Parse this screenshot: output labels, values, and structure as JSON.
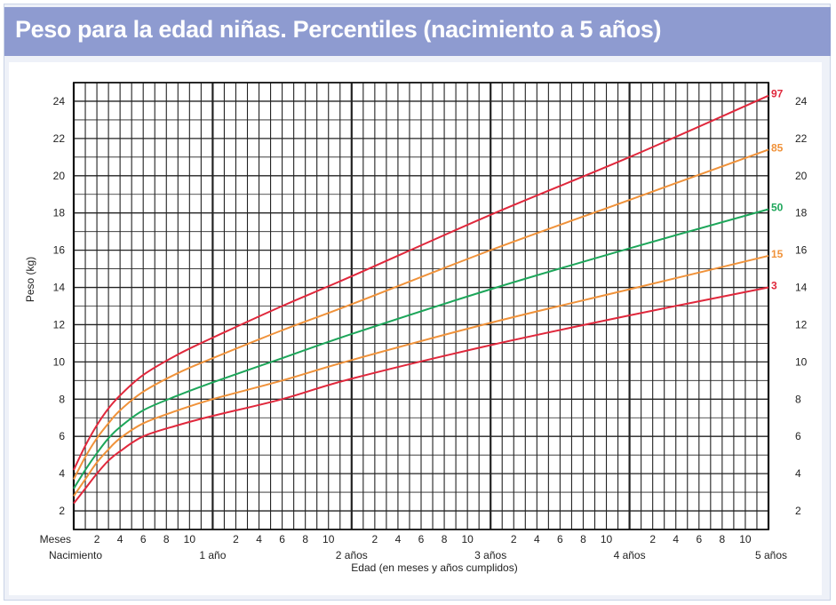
{
  "header": {
    "title": "Peso para la edad niñas. Percentiles (nacimiento a 5 años)"
  },
  "chart_data": {
    "type": "line",
    "title": "Peso para la edad niñas. Percentiles (nacimiento a 5 años)",
    "xlabel": "Edad (en meses y años cumplidos)",
    "ylabel": "Peso (kg)",
    "x_unit": "months",
    "xlim": [
      0,
      60
    ],
    "ylim": [
      1,
      25
    ],
    "yticks": [
      2,
      4,
      6,
      8,
      10,
      12,
      14,
      16,
      18,
      20,
      22,
      24
    ],
    "month_tick_labels": [
      "2",
      "4",
      "6",
      "8",
      "10"
    ],
    "meses_label": "Meses",
    "year_labels": [
      "Nacimiento",
      "1 año",
      "2 años",
      "3 años",
      "4 años",
      "5 años"
    ],
    "grid": true,
    "colors": {
      "red": "#e0283c",
      "orange": "#f0923a",
      "green": "#1da65a"
    },
    "series": [
      {
        "name": "97",
        "color": "#e0283c",
        "x": [
          0,
          1,
          2,
          3,
          4,
          6,
          9,
          12,
          18,
          24,
          36,
          48,
          60
        ],
        "y": [
          4.2,
          5.5,
          6.6,
          7.5,
          8.2,
          9.3,
          10.4,
          11.3,
          13.0,
          14.6,
          17.9,
          21.0,
          24.3
        ]
      },
      {
        "name": "85",
        "color": "#f0923a",
        "x": [
          0,
          1,
          2,
          3,
          4,
          6,
          9,
          12,
          18,
          24,
          36,
          48,
          60
        ],
        "y": [
          3.7,
          4.9,
          5.9,
          6.7,
          7.4,
          8.4,
          9.4,
          10.2,
          11.7,
          13.1,
          16.0,
          18.7,
          21.4
        ]
      },
      {
        "name": "50",
        "color": "#1da65a",
        "x": [
          0,
          1,
          2,
          3,
          4,
          6,
          9,
          12,
          18,
          24,
          36,
          48,
          60
        ],
        "y": [
          3.2,
          4.2,
          5.1,
          5.9,
          6.5,
          7.4,
          8.2,
          8.9,
          10.2,
          11.5,
          13.9,
          16.1,
          18.2
        ]
      },
      {
        "name": "15",
        "color": "#f0923a",
        "x": [
          0,
          1,
          2,
          3,
          4,
          6,
          9,
          12,
          18,
          24,
          36,
          48,
          60
        ],
        "y": [
          2.8,
          3.7,
          4.6,
          5.3,
          5.9,
          6.7,
          7.4,
          8.0,
          9.0,
          10.1,
          12.1,
          13.9,
          15.7
        ]
      },
      {
        "name": "3",
        "color": "#e0283c",
        "x": [
          0,
          1,
          2,
          3,
          4,
          6,
          9,
          12,
          18,
          24,
          36,
          48,
          60
        ],
        "y": [
          2.4,
          3.2,
          4.0,
          4.7,
          5.2,
          6.0,
          6.6,
          7.1,
          8.0,
          9.1,
          10.9,
          12.5,
          14.0
        ]
      }
    ]
  }
}
